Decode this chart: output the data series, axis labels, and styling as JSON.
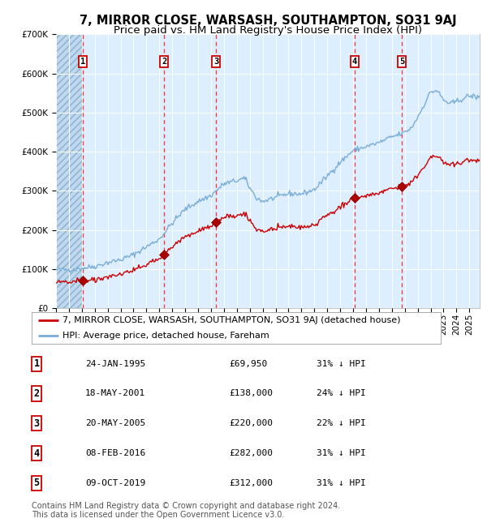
{
  "title": "7, MIRROR CLOSE, WARSASH, SOUTHAMPTON, SO31 9AJ",
  "subtitle": "Price paid vs. HM Land Registry's House Price Index (HPI)",
  "ylim": [
    0,
    700000
  ],
  "yticks": [
    0,
    100000,
    200000,
    300000,
    400000,
    500000,
    600000,
    700000
  ],
  "ytick_labels": [
    "£0",
    "£100K",
    "£200K",
    "£300K",
    "£400K",
    "£500K",
    "£600K",
    "£700K"
  ],
  "xlim_start": 1993.0,
  "xlim_end": 2025.8,
  "hpi_color": "#7aaed6",
  "price_color": "#cc0000",
  "bg_color": "#ddeeff",
  "hatch_color": "#c0d8ee",
  "grid_color": "#ffffff",
  "dashed_line_color": "#ff3333",
  "sale_dates_decimal": [
    1995.07,
    2001.38,
    2005.38,
    2016.1,
    2019.77
  ],
  "sale_prices": [
    69950,
    138000,
    220000,
    282000,
    312000
  ],
  "sale_labels": [
    "1",
    "2",
    "3",
    "4",
    "5"
  ],
  "sale_date_strings": [
    "24-JAN-1995",
    "18-MAY-2001",
    "20-MAY-2005",
    "08-FEB-2016",
    "09-OCT-2019"
  ],
  "sale_price_strings": [
    "£69,950",
    "£138,000",
    "£220,000",
    "£282,000",
    "£312,000"
  ],
  "sale_hpi_strings": [
    "31% ↓ HPI",
    "24% ↓ HPI",
    "22% ↓ HPI",
    "31% ↓ HPI",
    "31% ↓ HPI"
  ],
  "legend_red_label": "7, MIRROR CLOSE, WARSASH, SOUTHAMPTON, SO31 9AJ (detached house)",
  "legend_blue_label": "HPI: Average price, detached house, Fareham",
  "footnote": "Contains HM Land Registry data © Crown copyright and database right 2024.\nThis data is licensed under the Open Government Licence v3.0.",
  "title_fontsize": 10.5,
  "subtitle_fontsize": 9.5,
  "tick_fontsize": 7.5,
  "legend_fontsize": 8,
  "table_fontsize": 8,
  "footnote_fontsize": 7
}
